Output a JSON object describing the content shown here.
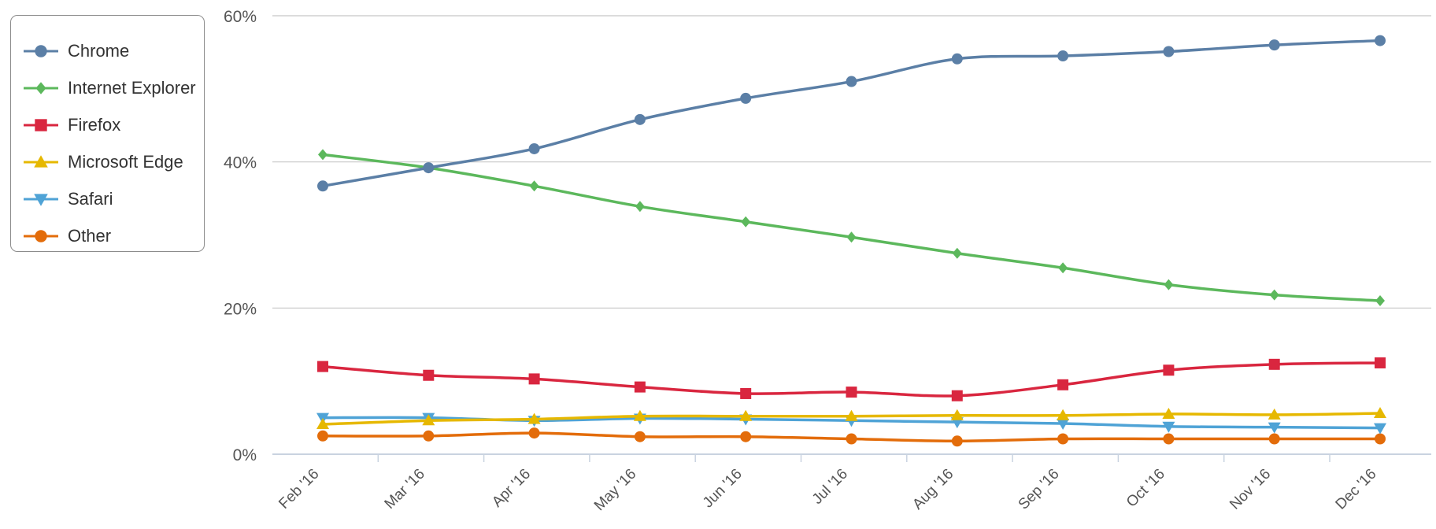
{
  "chart_data": {
    "type": "line",
    "title": "",
    "xlabel": "",
    "ylabel": "",
    "categories": [
      "Feb '16",
      "Mar '16",
      "Apr '16",
      "May '16",
      "Jun '16",
      "Jul '16",
      "Aug '16",
      "Sep '16",
      "Oct '16",
      "Nov '16",
      "Dec '16"
    ],
    "ylim": [
      0,
      60
    ],
    "yticks": [
      0,
      20,
      40,
      60
    ],
    "ytick_labels": [
      "0%",
      "20%",
      "40%",
      "60%"
    ],
    "grid": true,
    "legend_position": "top-left",
    "series": [
      {
        "name": "Chrome",
        "color": "#5b7fa6",
        "marker": "circle",
        "values": [
          36.7,
          39.2,
          41.8,
          45.8,
          48.7,
          51.0,
          54.1,
          54.5,
          55.1,
          56.0,
          56.6
        ]
      },
      {
        "name": "Internet Explorer",
        "color": "#5cb85c",
        "marker": "diamond",
        "values": [
          41.0,
          39.2,
          36.7,
          33.9,
          31.8,
          29.7,
          27.5,
          25.5,
          23.2,
          21.8,
          21.0
        ]
      },
      {
        "name": "Firefox",
        "color": "#d9263f",
        "marker": "square",
        "values": [
          12.0,
          10.8,
          10.3,
          9.2,
          8.3,
          8.5,
          8.0,
          9.5,
          11.5,
          12.3,
          12.5
        ]
      },
      {
        "name": "Microsoft Edge",
        "color": "#e6b800",
        "marker": "triangle-up",
        "values": [
          4.1,
          4.6,
          4.8,
          5.2,
          5.2,
          5.2,
          5.3,
          5.3,
          5.5,
          5.4,
          5.6
        ]
      },
      {
        "name": "Safari",
        "color": "#4fa3d6",
        "marker": "triangle-down",
        "values": [
          5.0,
          5.0,
          4.6,
          4.9,
          4.8,
          4.6,
          4.4,
          4.2,
          3.8,
          3.7,
          3.6
        ]
      },
      {
        "name": "Other",
        "color": "#e36c0a",
        "marker": "circle",
        "values": [
          2.5,
          2.5,
          2.9,
          2.4,
          2.4,
          2.1,
          1.8,
          2.1,
          2.1,
          2.1,
          2.1
        ]
      }
    ]
  }
}
